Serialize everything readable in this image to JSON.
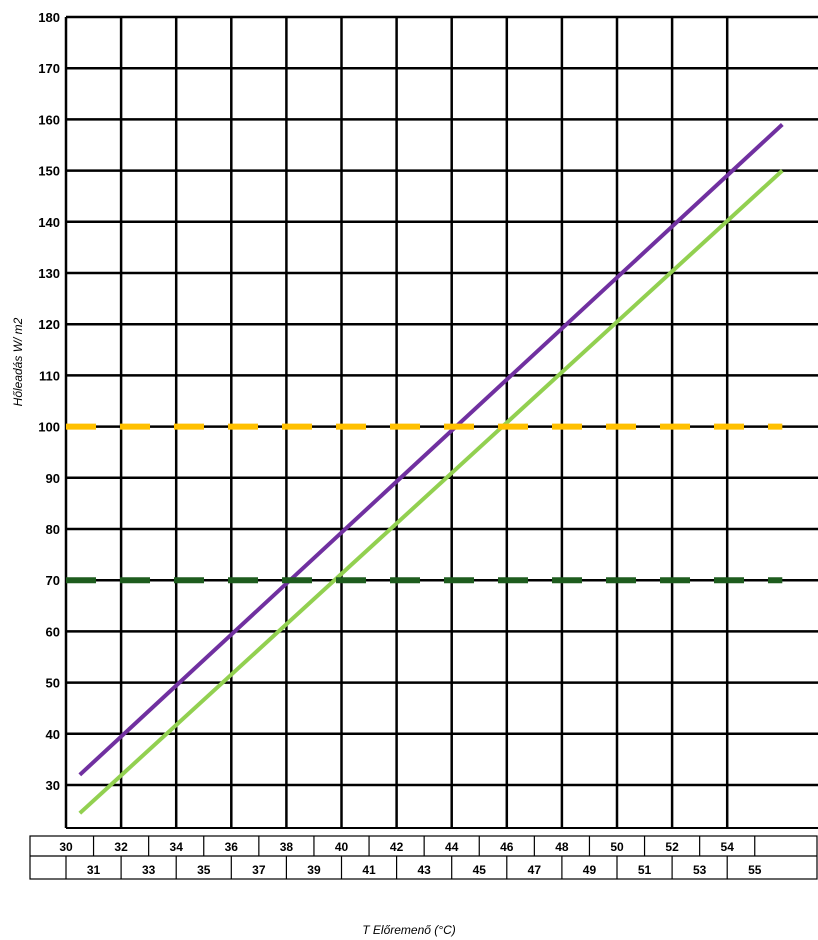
{
  "chart_data": {
    "type": "line",
    "title": "",
    "xlabel": "T Előremenő (°C)",
    "ylabel": "Hőleadás W/ m2",
    "xlim": [
      30,
      56
    ],
    "ylim": [
      23,
      180
    ],
    "x_ticks_row1": [
      30,
      32,
      34,
      36,
      38,
      40,
      42,
      44,
      46,
      48,
      50,
      52,
      54
    ],
    "x_ticks_row2": [
      31,
      33,
      35,
      37,
      39,
      41,
      43,
      45,
      47,
      49,
      51,
      53,
      55
    ],
    "y_ticks": [
      30,
      40,
      50,
      60,
      70,
      80,
      90,
      100,
      110,
      120,
      130,
      140,
      150,
      160,
      170,
      180
    ],
    "grid": true,
    "series": [
      {
        "color": "#7030A0",
        "style": "solid",
        "x": [
          30.5,
          56
        ],
        "y": [
          32,
          159
        ]
      },
      {
        "color": "#92D050",
        "style": "solid",
        "x": [
          30.5,
          56
        ],
        "y": [
          24.5,
          150
        ]
      },
      {
        "color": "#FFC000",
        "style": "dashed",
        "x": [
          30,
          56
        ],
        "y": [
          100,
          100
        ]
      },
      {
        "color": "#1E5C1E",
        "style": "dashed",
        "x": [
          30,
          56
        ],
        "y": [
          70,
          70
        ]
      }
    ]
  }
}
